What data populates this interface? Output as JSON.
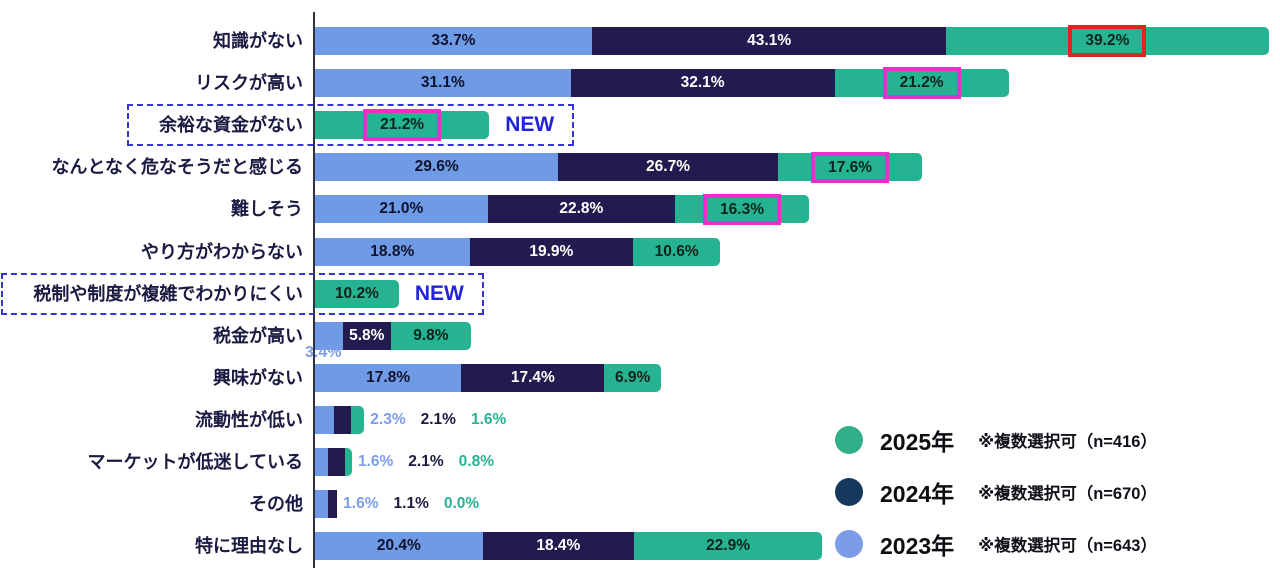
{
  "chart_data": {
    "type": "bar",
    "orientation": "horizontal",
    "stacked": true,
    "unit": "%",
    "title": "",
    "series_order": [
      "2023",
      "2024",
      "2025"
    ],
    "colors": {
      "2023": "#6f9ae6",
      "2024": "#231a4f",
      "2025": "#26b391"
    },
    "text_colors": {
      "2023": "#10132e",
      "2024": "#ffffff",
      "2025": "#0d241c"
    },
    "outside_text_colors": {
      "2023": "#7d9ce9",
      "2024": "#1b1a42",
      "2025": "#27b392"
    },
    "highlight_colors": {
      "red": "#e32222",
      "magenta": "#ec2ecc"
    },
    "new_badge_label": "NEW",
    "rows": [
      {
        "label": "知識がない",
        "values": {
          "2023": 33.7,
          "2024": 43.1,
          "2025": 39.2
        },
        "highlight_2025": "red"
      },
      {
        "label": "リスクが高い",
        "values": {
          "2023": 31.1,
          "2024": 32.1,
          "2025": 21.2
        },
        "highlight_2025": "magenta"
      },
      {
        "label": "余裕な資金がない",
        "values": {
          "2025": 21.2
        },
        "new": true,
        "highlight_2025": "magenta"
      },
      {
        "label": "なんとなく危なそうだと感じる",
        "values": {
          "2023": 29.6,
          "2024": 26.7,
          "2025": 17.6
        },
        "highlight_2025": "magenta"
      },
      {
        "label": "難しそう",
        "values": {
          "2023": 21.0,
          "2024": 22.8,
          "2025": 16.3
        },
        "highlight_2025": "magenta"
      },
      {
        "label": "やり方がわからない",
        "values": {
          "2023": 18.8,
          "2024": 19.9,
          "2025": 10.6
        }
      },
      {
        "label": "税制や制度が複雑でわかりにくい",
        "values": {
          "2025": 10.2
        },
        "new": true
      },
      {
        "label": "税金が高い",
        "values": {
          "2023": 3.4,
          "2024": 5.8,
          "2025": 9.8
        },
        "label_2023_below": true
      },
      {
        "label": "興味がない",
        "values": {
          "2023": 17.8,
          "2024": 17.4,
          "2025": 6.9
        }
      },
      {
        "label": "流動性が低い",
        "values": {
          "2023": 2.3,
          "2024": 2.1,
          "2025": 1.6
        },
        "labels_outside": true
      },
      {
        "label": "マーケットが低迷している",
        "values": {
          "2023": 1.6,
          "2024": 2.1,
          "2025": 0.8
        },
        "labels_outside": true
      },
      {
        "label": "その他",
        "values": {
          "2023": 1.6,
          "2024": 1.1,
          "2025": 0.0
        },
        "labels_outside": true
      },
      {
        "label": "特に理由なし",
        "values": {
          "2023": 20.4,
          "2024": 18.4,
          "2025": 22.9
        }
      }
    ],
    "legend": [
      {
        "year": "2025年",
        "note": "※複数選択可（n=416）",
        "color": "#2fae87"
      },
      {
        "year": "2024年",
        "note": "※複数選択可（n=670）",
        "color": "#14395d"
      },
      {
        "year": "2023年",
        "note": "※複数選択可（n=643）",
        "color": "#7d9ce8"
      }
    ],
    "layout_hints": {
      "legend_position": "bottom-right",
      "value_label_format": "0.0%",
      "grid": false
    }
  }
}
